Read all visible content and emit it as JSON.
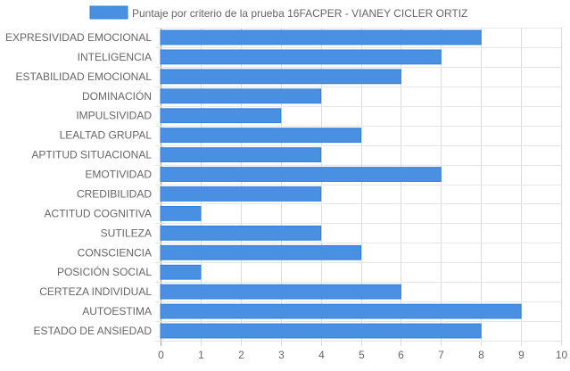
{
  "chart_data": {
    "type": "bar",
    "orientation": "horizontal",
    "categories": [
      "EXPRESIVIDAD EMOCIONAL",
      "INTELIGENCIA",
      "ESTABILIDAD EMOCIONAL",
      "DOMINACIÓN",
      "IMPULSIVIDAD",
      "LEALTAD GRUPAL",
      "APTITUD SITUACIONAL",
      "EMOTIVIDAD",
      "CREDIBILIDAD",
      "ACTITUD COGNITIVA",
      "SUTILEZA",
      "CONSCIENCIA",
      "POSICIÓN SOCIAL",
      "CERTEZA INDIVIDUAL",
      "AUTOESTIMA",
      "ESTADO DE ANSIEDAD"
    ],
    "series": [
      {
        "name": "Puntaje por criterio de la prueba 16FACPER - VIANEY CICLER ORTIZ",
        "values": [
          8,
          7,
          6,
          4,
          3,
          5,
          4,
          7,
          4,
          1,
          4,
          5,
          1,
          6,
          9,
          8
        ],
        "color": "#4a90e2",
        "border_color": "#2f7fe0"
      }
    ],
    "x_ticks": [
      "0",
      "1",
      "2",
      "3",
      "4",
      "5",
      "6",
      "7",
      "8",
      "9",
      "10"
    ],
    "xlim": [
      0,
      10
    ],
    "grid": true,
    "legend_position": "top"
  }
}
